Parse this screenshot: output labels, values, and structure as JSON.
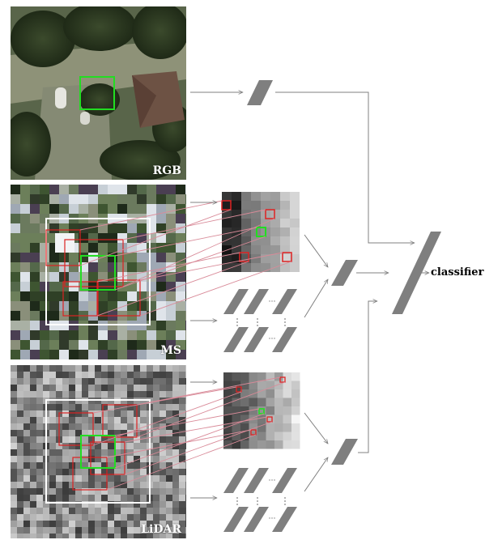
{
  "panels": {
    "rgb": {
      "label": "RGB"
    },
    "ms": {
      "label": "MS"
    },
    "lidar": {
      "label": "LiDAR"
    }
  },
  "output": {
    "label": "classifier"
  },
  "colors": {
    "highlight_green": "#22dd22",
    "window_red": "#dd2222",
    "window_white": "#ffffff",
    "connector_pink": "#d98b99",
    "arrow_gray": "#808080",
    "layer_gray": "#7f7f7f"
  }
}
